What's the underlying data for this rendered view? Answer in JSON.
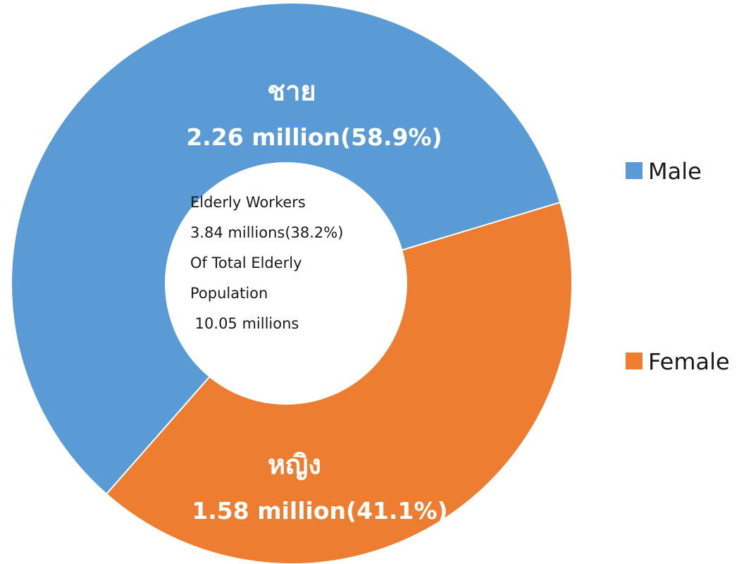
{
  "chart_data": {
    "type": "pie",
    "variant": "donut",
    "categories": [
      "Male",
      "Female"
    ],
    "values": [
      2.26,
      1.58
    ],
    "percentages": [
      58.9,
      41.1
    ],
    "colors": [
      "#5b9bd5",
      "#ed7d31"
    ],
    "slice_labels": [
      {
        "thai": "ชาย",
        "value_text": "2.26 million(58.9%)"
      },
      {
        "thai": "หญิง",
        "value_text": "1.58 million(41.1%)"
      }
    ],
    "center_text": [
      "Elderly Workers",
      "3.84 millions(38.2%)",
      "Of Total Elderly",
      "Population",
      " 10.05 millions"
    ],
    "legend": {
      "position": "right",
      "entries": [
        "Male",
        "Female"
      ]
    }
  }
}
